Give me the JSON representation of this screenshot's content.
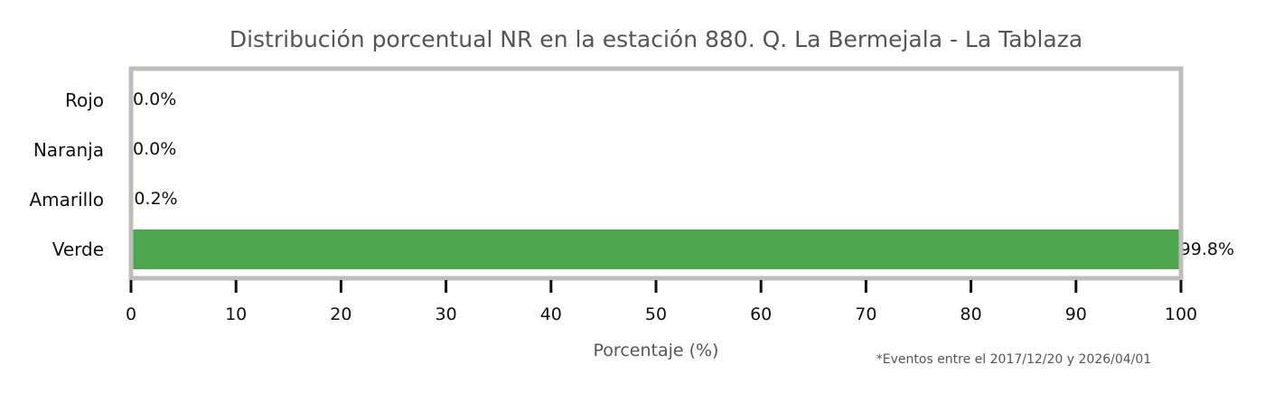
{
  "chart_data": {
    "type": "bar",
    "orientation": "horizontal",
    "title": "Distribución porcentual NR en la estación 880. Q. La Bermejala - La Tablaza",
    "xlabel": "Porcentaje (%)",
    "ylabel": "",
    "categories": [
      "Rojo",
      "Naranja",
      "Amarillo",
      "Verde"
    ],
    "values": [
      0.0,
      0.0,
      0.2,
      99.8
    ],
    "value_labels": [
      "0.0%",
      "0.0%",
      "0.2%",
      "99.8%"
    ],
    "bar_colors": [
      "#e53935",
      "#f39c12",
      "#f1c40f",
      "#4ca64c"
    ],
    "xlim": [
      0,
      100
    ],
    "xticks": [
      0,
      10,
      20,
      30,
      40,
      50,
      60,
      70,
      80,
      90,
      100
    ],
    "grid": false,
    "frame_color": "#c0bcb8",
    "footnote": "*Eventos entre el 2017/12/20 y 2026/04/01"
  }
}
